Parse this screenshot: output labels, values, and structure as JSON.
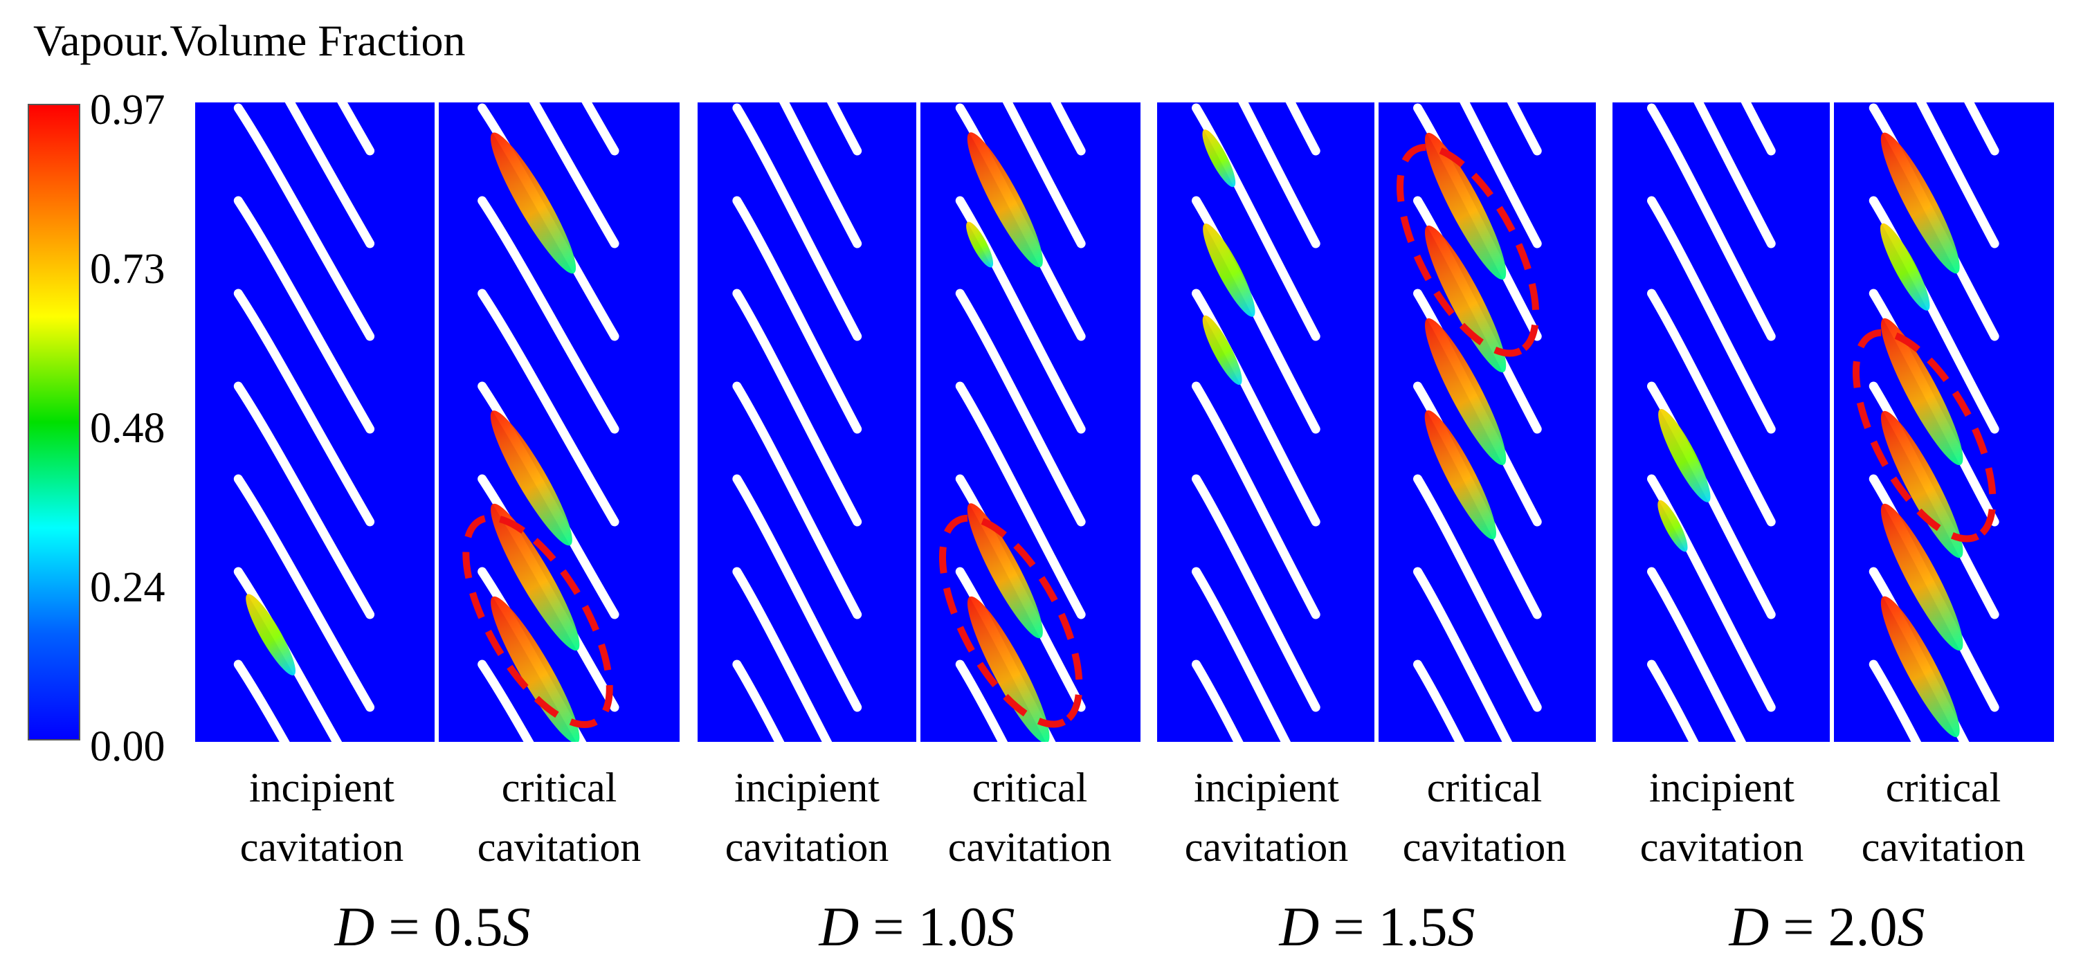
{
  "figure_title": "Vapour.Volume Fraction",
  "colorbar": {
    "ticks": [
      "0.97",
      "0.73",
      "0.48",
      "0.24",
      "0.00"
    ],
    "colors": [
      "#ff0000",
      "#ff8000",
      "#ffff00",
      "#00e000",
      "#00ffff",
      "#0060ff",
      "#0000ff"
    ]
  },
  "groups": [
    {
      "d_symbol": "D",
      "d_equals": " = ",
      "d_number": "0.5",
      "d_unit": "S",
      "panels": [
        {
          "line1": "incipient",
          "line2": "cavitation",
          "cavities": [
            0,
            0,
            0,
            0,
            0,
            0.45
          ],
          "ellipse": false
        },
        {
          "line1": "critical",
          "line2": "cavitation",
          "cavities": [
            0.95,
            0,
            0,
            0.9,
            1,
            1
          ],
          "ellipse": true
        }
      ]
    },
    {
      "d_symbol": "D",
      "d_equals": " = ",
      "d_number": "1.0",
      "d_unit": "S",
      "panels": [
        {
          "line1": "incipient",
          "line2": "cavitation",
          "cavities": [
            0,
            0,
            0,
            0,
            0,
            0
          ],
          "ellipse": false
        },
        {
          "line1": "critical",
          "line2": "cavitation",
          "cavities": [
            0.9,
            0.15,
            0,
            0,
            0.9,
            1
          ],
          "ellipse": true
        }
      ]
    },
    {
      "d_symbol": "D",
      "d_equals": " = ",
      "d_number": "1.5",
      "d_unit": "S",
      "panels": [
        {
          "line1": "incipient",
          "line2": "cavitation",
          "cavities": [
            0.25,
            0.55,
            0.35,
            0,
            0,
            0
          ],
          "ellipse": false
        },
        {
          "line1": "critical",
          "line2": "cavitation",
          "cavities": [
            1,
            1,
            1,
            0.85,
            0,
            0
          ],
          "ellipse": true
        }
      ]
    },
    {
      "d_symbol": "D",
      "d_equals": " = ",
      "d_number": "2.0",
      "d_unit": "S",
      "panels": [
        {
          "line1": "incipient",
          "line2": "cavitation",
          "cavities": [
            0,
            0,
            0,
            0.55,
            0.2,
            0
          ],
          "ellipse": false
        },
        {
          "line1": "critical",
          "line2": "cavitation",
          "cavities": [
            0.95,
            0.5,
            1,
            1,
            1,
            0.95
          ],
          "ellipse": true
        }
      ]
    }
  ]
}
